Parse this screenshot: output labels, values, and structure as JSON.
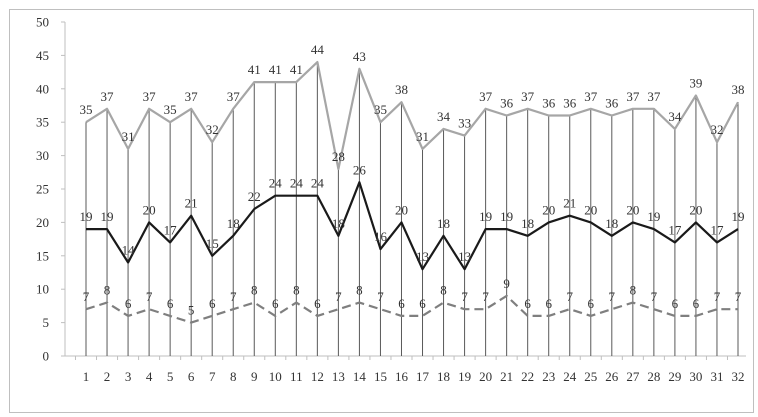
{
  "chart_data": {
    "type": "line",
    "title": "",
    "xlabel": "",
    "ylabel": "",
    "ylim": [
      0,
      50
    ],
    "yticks": [
      0,
      5,
      10,
      15,
      20,
      25,
      30,
      35,
      40,
      45,
      50
    ],
    "grid": "vertical drop lines",
    "legend": "none",
    "categories": [
      "1",
      "2",
      "3",
      "4",
      "5",
      "6",
      "7",
      "8",
      "9",
      "10",
      "11",
      "12",
      "13",
      "14",
      "15",
      "16",
      "17",
      "18",
      "19",
      "20",
      "21",
      "22",
      "23",
      "24",
      "25",
      "26",
      "27",
      "28",
      "29",
      "30",
      "31",
      "32"
    ],
    "series": [
      {
        "values": [
          35,
          37,
          31,
          37,
          35,
          37,
          32,
          37,
          41,
          41,
          41,
          44,
          28,
          43,
          35,
          38,
          31,
          34,
          33,
          37,
          36,
          37,
          36,
          36,
          37,
          36,
          37,
          37,
          34,
          39,
          32,
          38
        ],
        "color": "#a6a6a6",
        "style": "solid"
      },
      {
        "values": [
          19,
          19,
          14,
          20,
          17,
          21,
          15,
          18,
          22,
          24,
          24,
          24,
          18,
          26,
          16,
          20,
          13,
          18,
          13,
          19,
          19,
          18,
          20,
          21,
          20,
          18,
          20,
          19,
          17,
          20,
          17,
          19
        ],
        "color": "#1a1a1a",
        "style": "solid"
      },
      {
        "values": [
          7,
          8,
          6,
          7,
          6,
          5,
          6,
          7,
          8,
          6,
          8,
          6,
          7,
          8,
          7,
          6,
          6,
          8,
          7,
          7,
          9,
          6,
          6,
          7,
          6,
          7,
          8,
          7,
          6,
          6,
          7,
          7
        ],
        "color": "#7f7f7f",
        "style": "dashed"
      }
    ]
  }
}
